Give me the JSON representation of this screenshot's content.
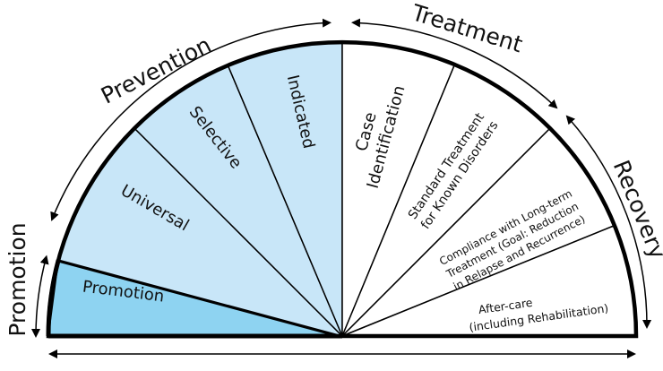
{
  "segments": {
    "promotion": "Promotion",
    "universal": "Universal",
    "selective": "Selective",
    "indicated": "Indicated",
    "case_identification": [
      "Case",
      "Identification"
    ],
    "standard_treatment": [
      "Standard Treatment",
      "for Known Disorders"
    ],
    "compliance": [
      "Compliance with Long-term",
      "Treatment (Goal: Reduction",
      "in Relapse and Recurrence)"
    ],
    "after_care": [
      "After-care",
      "(including Rehabilitation)"
    ]
  },
  "arc_labels": {
    "promotion": "Promotion",
    "prevention": "Prevention",
    "treatment": "Treatment",
    "recovery": "Recovery"
  },
  "colors": {
    "promotion_fill": "#8ed3f1",
    "prevention_fill": "#c8e6f8",
    "treatment_fill": "#ffffff",
    "outline": "#000000"
  }
}
